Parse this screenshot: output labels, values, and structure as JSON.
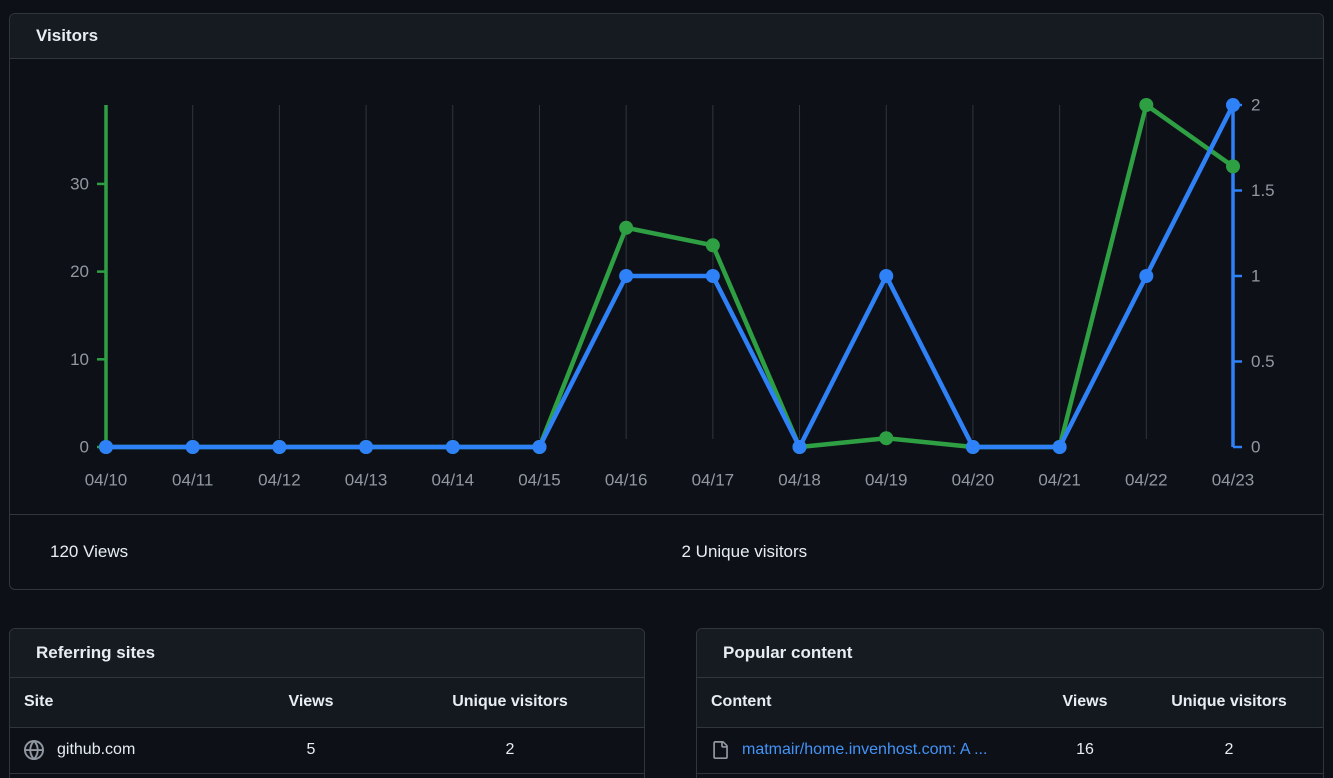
{
  "visitors": {
    "title": "Visitors",
    "summary": {
      "views": "120 Views",
      "unique": "2 Unique visitors"
    }
  },
  "chart_data": {
    "type": "line",
    "title": "Visitors",
    "categories": [
      "04/10",
      "04/11",
      "04/12",
      "04/13",
      "04/14",
      "04/15",
      "04/16",
      "04/17",
      "04/18",
      "04/19",
      "04/20",
      "04/21",
      "04/22",
      "04/23"
    ],
    "series": [
      {
        "name": "Views",
        "axis": "left",
        "color": "#2ea043",
        "values": [
          0,
          0,
          0,
          0,
          0,
          0,
          25,
          23,
          0,
          1,
          0,
          0,
          39,
          32
        ]
      },
      {
        "name": "Unique visitors",
        "axis": "right",
        "color": "#2f81f7",
        "values": [
          0,
          0,
          0,
          0,
          0,
          0,
          1,
          1,
          0,
          1,
          0,
          0,
          1,
          2
        ]
      }
    ],
    "left_axis": {
      "ticks": [
        0,
        10,
        20,
        30
      ],
      "max": 39,
      "color": "#2ea043",
      "label_color": "#9198a1"
    },
    "right_axis": {
      "ticks": [
        0,
        0.5,
        1,
        1.5,
        2
      ],
      "max": 2,
      "color": "#2f81f7",
      "label_color": "#9198a1"
    },
    "x_axis": {
      "label_color": "#9198a1"
    },
    "grid": {
      "vertical": true,
      "color": "#30363d"
    },
    "legend": "none",
    "totals": {
      "views": 120,
      "unique_visitors": 2
    }
  },
  "referring_sites": {
    "title": "Referring sites",
    "columns": {
      "site": "Site",
      "views": "Views",
      "unique": "Unique visitors"
    },
    "rows": [
      {
        "icon": "globe-icon",
        "site": "github.com",
        "views": "5",
        "unique": "2"
      }
    ]
  },
  "popular_content": {
    "title": "Popular content",
    "columns": {
      "content": "Content",
      "views": "Views",
      "unique": "Unique visitors"
    },
    "rows": [
      {
        "icon": "file-icon",
        "content": "matmair/home.invenhost.com: A ...",
        "views": "16",
        "unique": "2"
      }
    ]
  }
}
